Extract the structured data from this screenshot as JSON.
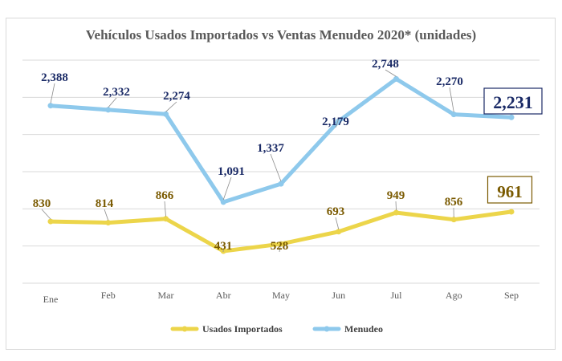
{
  "chart_data": {
    "type": "line",
    "title": "Vehículos Usados Importados  vs Ventas Menudeo 2020* (unidades)",
    "categories": [
      "Ene",
      "Feb",
      "Mar",
      "Abr",
      "May",
      "Jun",
      "Jul",
      "Ago",
      "Sep"
    ],
    "ylim": [
      0,
      3000
    ],
    "y_grid_step": 500,
    "y_tick_labels_shown": false,
    "grid": true,
    "legend_position": "bottom",
    "series": [
      {
        "name": "Usados Importados",
        "color": "#ecd54a",
        "label_color": "#7a5a00",
        "values": [
          830,
          814,
          866,
          431,
          528,
          693,
          949,
          856,
          961
        ],
        "labels": [
          "830",
          "814",
          "866",
          "431",
          "528",
          "693",
          "949",
          "856",
          "961"
        ]
      },
      {
        "name": "Menudeo",
        "color": "#8ec9ec",
        "label_color": "#1a2a66",
        "values": [
          2388,
          2332,
          2274,
          1091,
          1337,
          2179,
          2748,
          2270,
          2231
        ],
        "labels": [
          "2,388",
          "2,332",
          "2,274",
          "1,091",
          "1,337",
          "2,179",
          "2,748",
          "2,270",
          "2,231"
        ]
      }
    ],
    "highlighted_last_value_boxed": true
  }
}
